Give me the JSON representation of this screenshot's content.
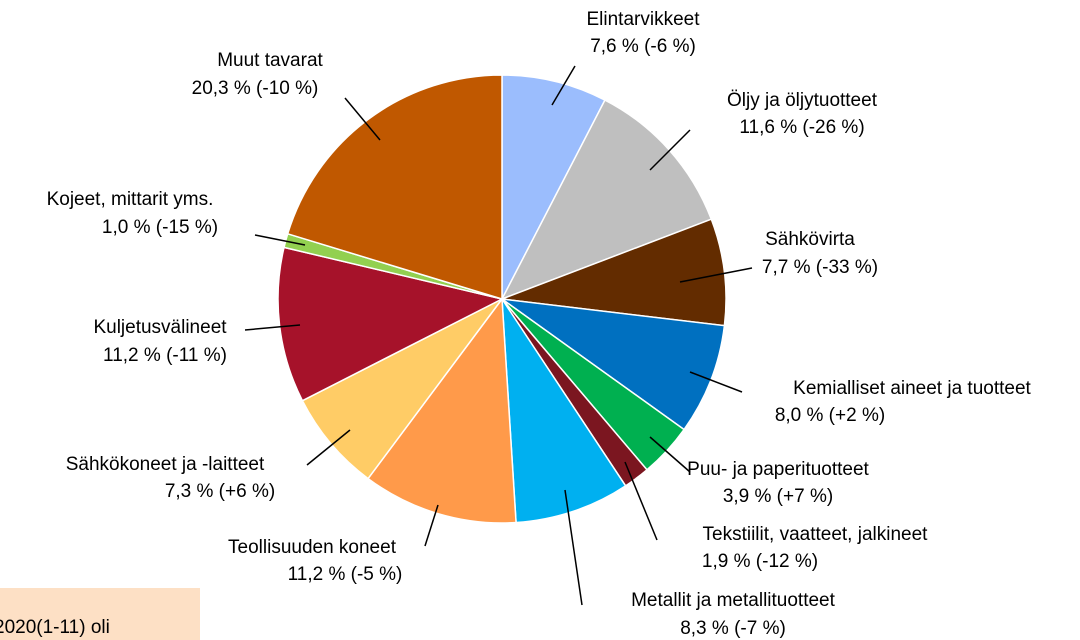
{
  "chart_data": {
    "type": "pie",
    "categories": [
      "Elintarvikkeet",
      "Öljy ja öljytuotteet",
      "Sähkövirta",
      "Kemialliset aineet ja tuotteet",
      "Puu- ja paperituotteet",
      "Tekstiilit, vaatteet, jalkineet",
      "Metallit ja metallituotteet",
      "Teollisuuden koneet",
      "Sähkökoneet ja -laitteet",
      "Kuljetusvälineet",
      "Kojeet, mittarit yms.",
      "Muut tavarat"
    ],
    "values": [
      7.6,
      11.6,
      7.7,
      8.0,
      3.9,
      1.9,
      8.3,
      11.2,
      7.3,
      11.2,
      1.0,
      20.3
    ],
    "value_labels": [
      "7,6 % (-6 %)",
      "11,6 % (-26 %)",
      "7,7 % (-33 %)",
      "8,0 % (+2 %)",
      "3,9 % (+7 %)",
      "1,9 % (-12 %)",
      "8,3 % (-7 %)",
      "11,2 % (-5 %)",
      "7,3 % (+6 %)",
      "11,2 % (-11 %)",
      "1,0 % (-15 %)",
      "20,3 % (-10 %)"
    ],
    "colors": [
      "#9bbdfd",
      "#bfbfbf",
      "#632c00",
      "#0070c0",
      "#00b050",
      "#7b1620",
      "#00b0f0",
      "#ff9a4a",
      "#ffcc66",
      "#a6122a",
      "#92d050",
      "#c05800"
    ],
    "annotation": "2020(1-11) oli"
  }
}
